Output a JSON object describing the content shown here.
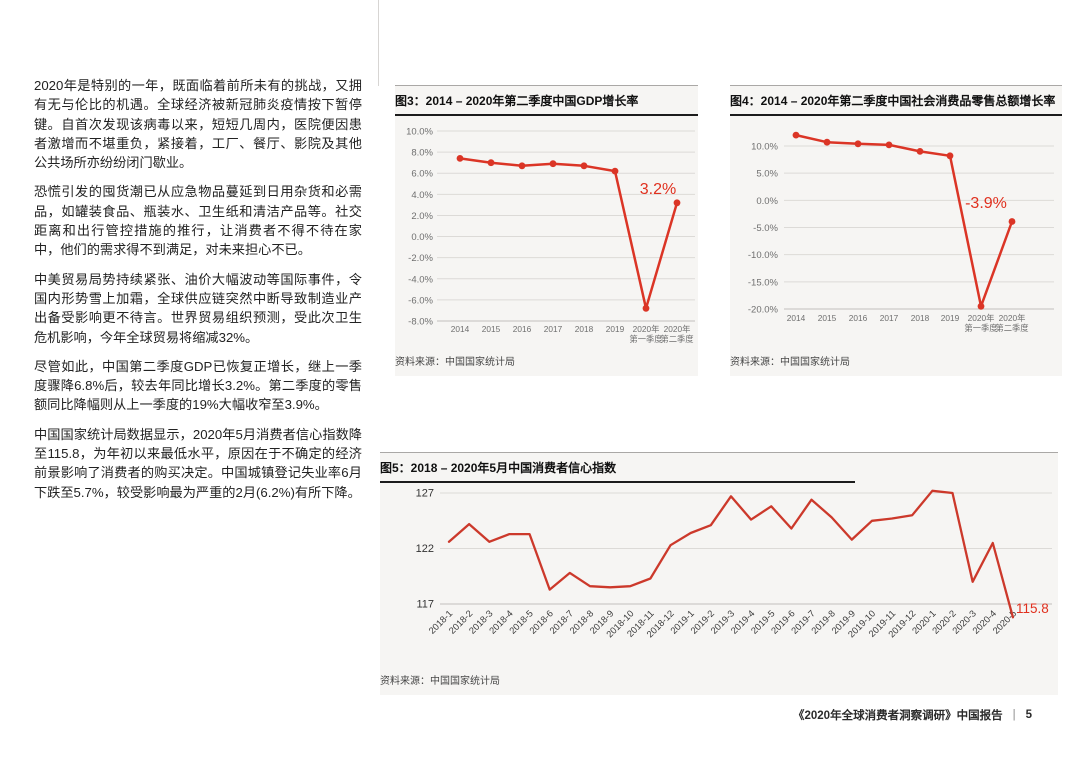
{
  "article": {
    "paragraphs": [
      "2020年是特别的一年，既面临着前所未有的挑战，又拥有无与伦比的机遇。全球经济被新冠肺炎疫情按下暂停键。自首次发现该病毒以来，短短几周内，医院便因患者激增而不堪重负，紧接着，工厂、餐厅、影院及其他公共场所亦纷纷闭门歇业。",
      "恐慌引发的囤货潮已从应急物品蔓延到日用杂货和必需品，如罐装食品、瓶装水、卫生纸和清洁产品等。社交距离和出行管控措施的推行，让消费者不得不待在家中，他们的需求得不到满足，对未来担心不已。",
      "中美贸易局势持续紧张、油价大幅波动等国际事件，令国内形势雪上加霜，全球供应链突然中断导致制造业产出备受影响更不待言。世界贸易组织预测，受此次卫生危机影响，今年全球贸易将缩减32%。",
      "尽管如此，中国第二季度GDP已恢复正增长，继上一季度骤降6.8%后，较去年同比增长3.2%。第二季度的零售额同比降幅则从上一季度的19%大幅收窄至3.9%。",
      "中国国家统计局数据显示，2020年5月消费者信心指数降至115.8，为年初以来最低水平，原因在于不确定的经济前景影响了消费者的购买决定。中国城镇登记失业率6月下跌至5.7%，较受影响最为严重的2月(6.2%)有所下降。"
    ]
  },
  "chart_data": [
    {
      "id": "fig3",
      "type": "line",
      "title": "图3：2014 – 2020年第二季度中国GDP增长率",
      "categories": [
        "2014",
        "2015",
        "2016",
        "2017",
        "2018",
        "2019",
        "2020年\n第一季度",
        "2020年\n第二季度"
      ],
      "values": [
        7.4,
        7.0,
        6.7,
        6.9,
        6.7,
        6.2,
        -6.8,
        3.2
      ],
      "annotation": "3.2%",
      "ylabel_ticks": [
        "10.0%",
        "8.0%",
        "6.0%",
        "4.0%",
        "2.0%",
        "0.0%",
        "-2.0%",
        "-4.0%",
        "-6.0%",
        "-8.0%"
      ],
      "ylim": [
        -8,
        10
      ],
      "grid": true,
      "legend": "none",
      "line_color": "#db3526",
      "annotation_color": "#e0301e",
      "source": "资料来源：中国国家统计局"
    },
    {
      "id": "fig4",
      "type": "line",
      "title": "图4：2014 – 2020年第二季度中国社会消费品零售总额增长率",
      "categories": [
        "2014",
        "2015",
        "2016",
        "2017",
        "2018",
        "2019",
        "2020年\n第一季度",
        "2020年\n第二季度"
      ],
      "values": [
        12.0,
        10.7,
        10.4,
        10.2,
        9.0,
        8.2,
        -19.5,
        -3.9
      ],
      "annotation": "-3.9%",
      "ylabel_ticks": [
        "10.0%",
        "5.0%",
        "0.0%",
        "-5.0%",
        "-10.0%",
        "-15.0%",
        "-20.0%"
      ],
      "ylim": [
        -20,
        10
      ],
      "grid": true,
      "legend": "none",
      "line_color": "#db3526",
      "annotation_color": "#e0301e",
      "source": "资料来源：中国国家统计局"
    },
    {
      "id": "fig5",
      "type": "line",
      "title": "图5：2018 – 2020年5月中国消费者信心指数",
      "categories": [
        "2018-1",
        "2018-2",
        "2018-3",
        "2018-4",
        "2018-5",
        "2018-6",
        "2018-7",
        "2018-8",
        "2018-9",
        "2018-10",
        "2018-11",
        "2018-12",
        "2019-1",
        "2019-2",
        "2019-3",
        "2019-4",
        "2019-5",
        "2019-6",
        "2019-7",
        "2019-8",
        "2019-9",
        "2019-10",
        "2019-11",
        "2019-12",
        "2020-1",
        "2020-2",
        "2020-3",
        "2020-4",
        "2020-5"
      ],
      "values": [
        122.6,
        124.2,
        122.6,
        123.3,
        123.3,
        118.3,
        119.8,
        118.6,
        118.5,
        118.6,
        119.3,
        122.3,
        123.4,
        124.1,
        126.7,
        124.6,
        125.8,
        123.8,
        126.4,
        124.8,
        122.8,
        124.5,
        124.7,
        125.0,
        127.2,
        127.0,
        119.0,
        122.5,
        115.8
      ],
      "annotation": "115.8",
      "ylabel_ticks": [
        "127",
        "122",
        "117"
      ],
      "ylim": [
        117,
        127
      ],
      "grid": true,
      "legend": "none",
      "line_color": "#cc392b",
      "annotation_color": "#e0301e",
      "source": "资料来源：中国国家统计局"
    }
  ],
  "footer": {
    "report_title": "《2020年全球消费者洞察调研》中国报告",
    "separator": "|",
    "page_number": "5"
  }
}
